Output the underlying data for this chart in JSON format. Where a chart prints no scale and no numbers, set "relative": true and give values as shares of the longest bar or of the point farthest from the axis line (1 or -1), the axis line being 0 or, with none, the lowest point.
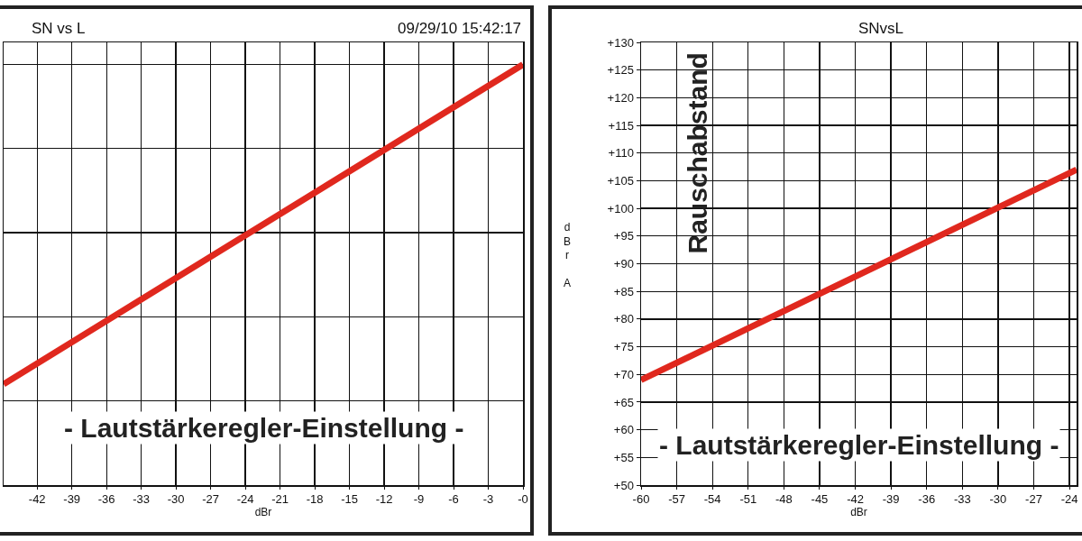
{
  "chart_data": [
    {
      "type": "line",
      "title": "SN vs L",
      "xlabel": "dBr",
      "relative": true,
      "annotations": [
        "09/29/10 15:42:17",
        "- Lautstärkeregler-Einstellung -"
      ],
      "x": [
        -44.9,
        0
      ],
      "xlim": [
        -44.9,
        0
      ],
      "xticks": [
        -42,
        -39,
        -36,
        -33,
        -30,
        -27,
        -24,
        -21,
        -18,
        -15,
        -12,
        -9,
        -6,
        -3,
        {
          "value": 0,
          "label": "-0"
        }
      ],
      "series": [
        {
          "color": "#e0281e",
          "values": [
            0.24,
            1
          ]
        }
      ],
      "grid": true,
      "marker": "none",
      "line_style": "solid"
    },
    {
      "type": "line",
      "title": "SNvsL",
      "xlabel": "dBr",
      "ylabel": "dBr A",
      "annotations": [
        "Rauschabstand",
        "- Lautstärkeregler-Einstellung -"
      ],
      "x": [
        -60,
        -23.4
      ],
      "xlim": [
        -60,
        -23.4
      ],
      "ylim": [
        50,
        130
      ],
      "xticks": [
        -60,
        -57,
        -54,
        -51,
        -48,
        -45,
        -42,
        -39,
        -36,
        -33,
        -30,
        -27,
        -24
      ],
      "yticks": [
        {
          "value": 50,
          "label": "+50"
        },
        {
          "value": 55,
          "label": "+55"
        },
        {
          "value": 60,
          "label": "+60"
        },
        {
          "value": 65,
          "label": "+65"
        },
        {
          "value": 70,
          "label": "+70"
        },
        {
          "value": 75,
          "label": "+75"
        },
        {
          "value": 80,
          "label": "+80"
        },
        {
          "value": 85,
          "label": "+85"
        },
        {
          "value": 90,
          "label": "+90"
        },
        {
          "value": 95,
          "label": "+95"
        },
        {
          "value": 100,
          "label": "+100"
        },
        {
          "value": 105,
          "label": "+105"
        },
        {
          "value": 110,
          "label": "+110"
        },
        {
          "value": 115,
          "label": "+115"
        },
        {
          "value": 120,
          "label": "+120"
        },
        {
          "value": 125,
          "label": "+125"
        },
        {
          "value": 130,
          "label": "+130"
        }
      ],
      "series": [
        {
          "color": "#e0281e",
          "values": [
            69,
            107
          ]
        }
      ],
      "grid": true,
      "marker": "none",
      "line_style": "solid"
    }
  ]
}
